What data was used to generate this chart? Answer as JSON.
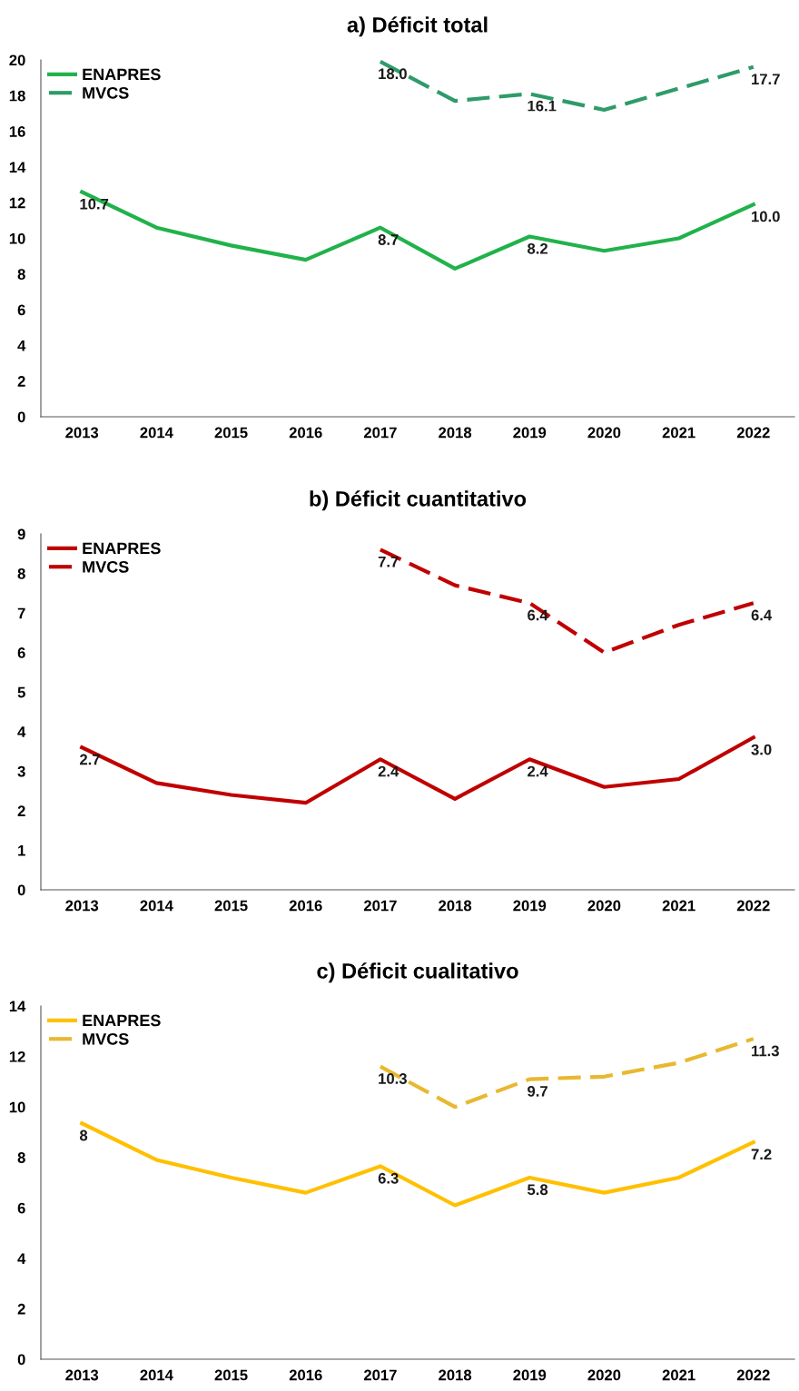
{
  "chart_data": [
    {
      "type": "line",
      "title": "a) Déficit total",
      "categories": [
        "2013",
        "2014",
        "2015",
        "2016",
        "2017",
        "2018",
        "2019",
        "2020",
        "2021",
        "2022"
      ],
      "ylim": [
        0,
        20
      ],
      "yticks": [
        0,
        2,
        4,
        6,
        8,
        10,
        12,
        14,
        16,
        18,
        20
      ],
      "legend": "top left",
      "series": [
        {
          "name": "ENAPRES",
          "color": "#21b24b",
          "line_style": "solid",
          "values": [
            12.6,
            10.6,
            9.6,
            8.8,
            10.6,
            8.3,
            10.1,
            9.3,
            10.0,
            11.9
          ]
        },
        {
          "name": "MVCS",
          "color": "#2e9b6a",
          "line_style": "dashed",
          "values": [
            null,
            null,
            null,
            null,
            19.9,
            17.7,
            18.1,
            17.2,
            18.4,
            19.6
          ]
        }
      ],
      "annotations": [
        {
          "text": "10.7",
          "x": "2013",
          "y": 12.6
        },
        {
          "text": "8.7",
          "x": "2017",
          "y": 10.6
        },
        {
          "text": "8.2",
          "x": "2019",
          "y": 10.1
        },
        {
          "text": "10.0",
          "x": "2022",
          "y": 11.9
        },
        {
          "text": "18.0",
          "x": "2017",
          "y": 19.9
        },
        {
          "text": "16.1",
          "x": "2019",
          "y": 18.1
        },
        {
          "text": "17.7",
          "x": "2022",
          "y": 19.6
        }
      ]
    },
    {
      "type": "line",
      "title": "b) Déficit cuantitativo",
      "categories": [
        "2013",
        "2014",
        "2015",
        "2016",
        "2017",
        "2018",
        "2019",
        "2020",
        "2021",
        "2022"
      ],
      "ylim": [
        0,
        9
      ],
      "yticks": [
        0,
        1,
        2,
        3,
        4,
        5,
        6,
        7,
        8,
        9
      ],
      "legend": "top left",
      "series": [
        {
          "name": "ENAPRES",
          "color": "#c00000",
          "line_style": "solid",
          "values": [
            3.6,
            2.7,
            2.4,
            2.2,
            3.3,
            2.3,
            3.3,
            2.6,
            2.8,
            3.85
          ]
        },
        {
          "name": "MVCS",
          "color": "#c00000",
          "line_style": "dashed",
          "values": [
            null,
            null,
            null,
            null,
            8.6,
            7.7,
            7.25,
            6.0,
            6.7,
            7.25
          ]
        }
      ],
      "annotations": [
        {
          "text": "2.7",
          "x": "2013",
          "y": 3.6
        },
        {
          "text": "2.4",
          "x": "2017",
          "y": 3.3
        },
        {
          "text": "2.4",
          "x": "2019",
          "y": 3.3
        },
        {
          "text": "3.0",
          "x": "2022",
          "y": 3.85
        },
        {
          "text": "7.7",
          "x": "2017",
          "y": 8.6
        },
        {
          "text": "6.4",
          "x": "2019",
          "y": 7.25
        },
        {
          "text": "6.4",
          "x": "2022",
          "y": 7.25
        }
      ]
    },
    {
      "type": "line",
      "title": "c) Déficit cualitativo",
      "categories": [
        "2013",
        "2014",
        "2015",
        "2016",
        "2017",
        "2018",
        "2019",
        "2020",
        "2021",
        "2022"
      ],
      "ylim": [
        0,
        14
      ],
      "yticks": [
        0,
        2,
        4,
        6,
        8,
        10,
        12,
        14
      ],
      "legend": "top left",
      "series": [
        {
          "name": "ENAPRES",
          "color": "#ffc000",
          "line_style": "solid",
          "values": [
            9.35,
            7.9,
            7.2,
            6.6,
            7.65,
            6.1,
            7.2,
            6.6,
            7.2,
            8.6
          ]
        },
        {
          "name": "MVCS",
          "color": "#e8b830",
          "line_style": "dashed",
          "values": [
            null,
            null,
            null,
            null,
            11.6,
            10.0,
            11.1,
            11.2,
            11.75,
            12.7
          ]
        }
      ],
      "annotations": [
        {
          "text": "8",
          "x": "2013",
          "y": 9.35
        },
        {
          "text": "6.3",
          "x": "2017",
          "y": 7.65
        },
        {
          "text": "5.8",
          "x": "2019",
          "y": 7.2
        },
        {
          "text": "7.2",
          "x": "2022",
          "y": 8.6
        },
        {
          "text": "10.3",
          "x": "2017",
          "y": 11.6
        },
        {
          "text": "9.7",
          "x": "2019",
          "y": 11.1
        },
        {
          "text": "11.3",
          "x": "2022",
          "y": 12.7
        }
      ]
    }
  ]
}
